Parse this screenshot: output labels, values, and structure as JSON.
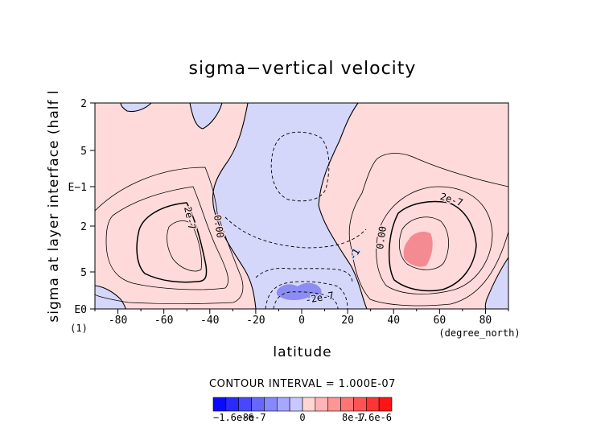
{
  "chart_data": {
    "type": "contour",
    "title": "sigma−vertical velocity",
    "xlabel": "latitude",
    "xunits": "(degree_north)",
    "ylabel": "sigma at layer interface (half l",
    "yunits": "(1)",
    "xlim": [
      -90,
      90
    ],
    "x_ticks": [
      -80,
      -60,
      -40,
      -20,
      0,
      20,
      40,
      60,
      80
    ],
    "y_tick_labels": [
      "2",
      "5",
      "E−1",
      "2",
      "5",
      "E0"
    ],
    "contour_interval_text": "CONTOUR INTERVAL = 1.000E-07",
    "contour_labels": [
      "2e-7",
      "2e-7",
      "0.00",
      "0.00",
      "-1",
      "-2e-7"
    ],
    "colorbar": {
      "tick_labels": [
        "−1.6e-6",
        "−8e-7",
        "0",
        "8e-7",
        "1.6e-6"
      ],
      "colors": [
        "#0a0aff",
        "#2a2aff",
        "#4747ff",
        "#6767ff",
        "#8787ff",
        "#a7a7ff",
        "#c8c8ff",
        "#ffd5d5",
        "#ffb5b5",
        "#ff9595",
        "#ff7575",
        "#ff5555",
        "#ff3535",
        "#ff1515"
      ]
    },
    "colors": {
      "positive": "#ffdada",
      "negative": "#d4d7fa",
      "max_positive": "#f48a92",
      "max_negative": "#8c8cf2"
    }
  }
}
